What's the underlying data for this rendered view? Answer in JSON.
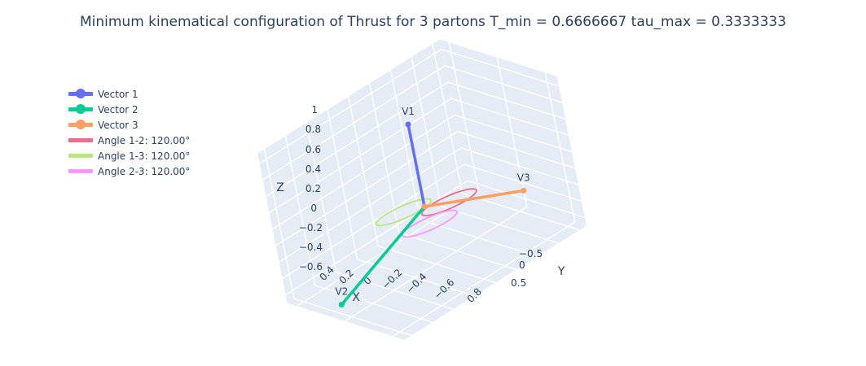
{
  "chart_data": {
    "type": "scatter3d",
    "title": "Minimum kinematical configuration of Thrust for 3 partons T_min = 0.6666667 tau_max = 0.3333333",
    "axes": {
      "x": {
        "title": "X",
        "ticks": [
          "0.8",
          "−0.6",
          "−0.4",
          "−0.2",
          "0",
          "0.2",
          "0.4"
        ]
      },
      "y": {
        "title": "Y",
        "ticks": [
          "−0.5",
          "0",
          "0.5"
        ]
      },
      "z": {
        "title": "Z",
        "ticks": [
          "−0.6",
          "−0.4",
          "−0.2",
          "0",
          "0.2",
          "0.4",
          "0.6",
          "0.8",
          "1"
        ]
      }
    },
    "series": [
      {
        "name": "Vector 1",
        "kind": "vector",
        "color": "#636efa",
        "label": "V1",
        "tip": [
          0,
          0,
          1
        ]
      },
      {
        "name": "Vector 2",
        "kind": "vector",
        "color": "#00cc96",
        "label": "V2",
        "tip": [
          0.866,
          0,
          -0.5
        ]
      },
      {
        "name": "Vector 3",
        "kind": "vector",
        "color": "#fca062",
        "label": "V3",
        "tip": [
          -0.866,
          0,
          -0.5
        ]
      },
      {
        "name": "Angle 1-2: 120.00°",
        "kind": "angle",
        "color": "#ef6b8a"
      },
      {
        "name": "Angle 1-3: 120.00°",
        "kind": "angle",
        "color": "#b6e880"
      },
      {
        "name": "Angle 2-3: 120.00°",
        "kind": "angle",
        "color": "#ff97ff"
      }
    ],
    "grid": true,
    "legend_position": "top-left"
  }
}
